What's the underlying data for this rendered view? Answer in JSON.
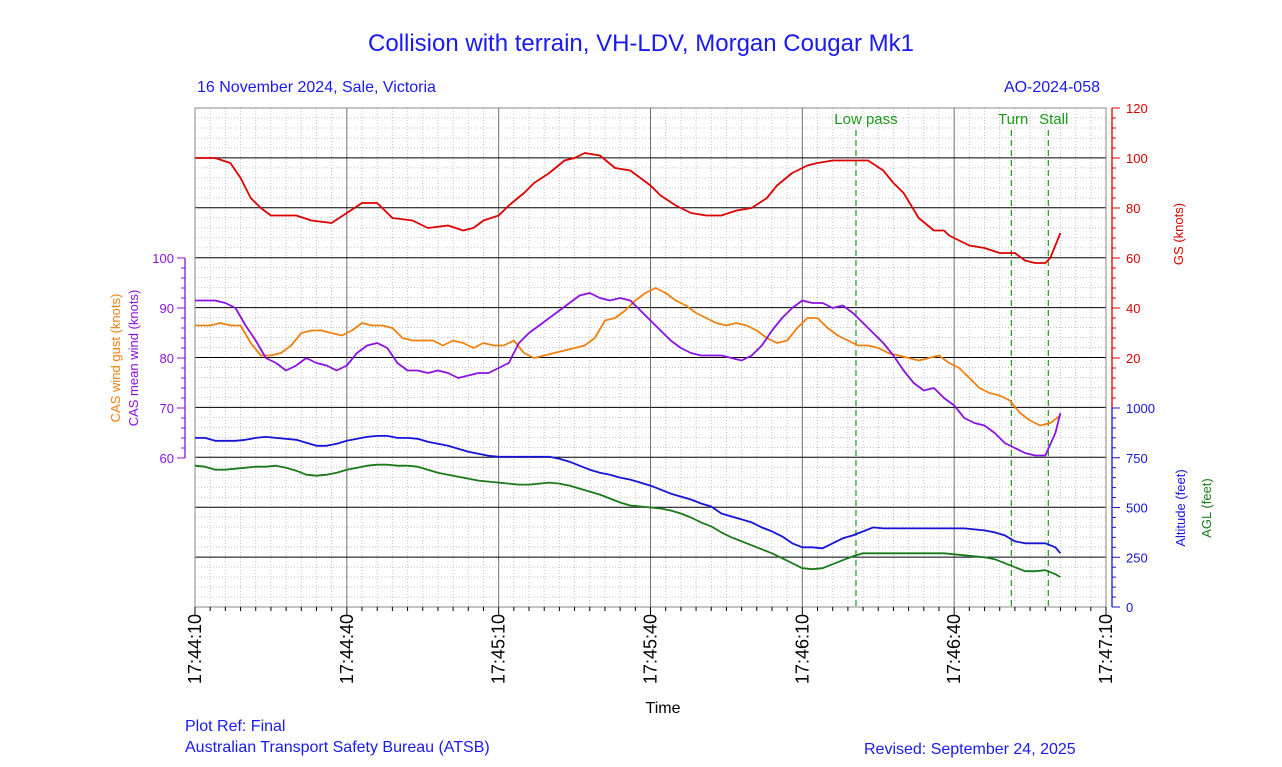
{
  "title": "Collision with terrain, VH-LDV, Morgan Cougar Mk1",
  "subtitle_left": "16 November 2024, Sale, Victoria",
  "subtitle_right": "AO-2024-058",
  "footer": {
    "plot_ref": "Plot Ref: Final",
    "organisation": "Australian Transport Safety Bureau (ATSB)",
    "revised": "Revised: September 24, 2025"
  },
  "colors": {
    "gs": "#dd0000",
    "cas_gust": "#f08010",
    "cas_mean": "#8a12e0",
    "altitude": "#1414d8",
    "agl": "#1a7a1a",
    "events": "#1a9a1a",
    "text_blue": "#1a1aee"
  },
  "chart_data": {
    "type": "line",
    "xlabel": "Time",
    "x_ticks": [
      "17:44:10",
      "17:44:40",
      "17:45:10",
      "17:45:40",
      "17:46:10",
      "17:46:40",
      "17:47:10"
    ],
    "x_range_seconds": [
      0,
      180
    ],
    "grid": true,
    "axes": {
      "gs": {
        "label": "GS (knots)",
        "range": [
          0,
          120
        ],
        "ticks": [
          20,
          40,
          60,
          80,
          100,
          120
        ]
      },
      "cas": {
        "labels": [
          "CAS wind gust (knots)",
          "CAS mean wind (knots)"
        ],
        "range": [
          60,
          100
        ],
        "ticks": [
          60,
          70,
          80,
          90,
          100
        ]
      },
      "alt": {
        "labels": [
          "Altitude (feet)",
          "AGL (feet)"
        ],
        "range": [
          0,
          1000
        ],
        "ticks": [
          0,
          250,
          500,
          750,
          1000
        ]
      }
    },
    "events": [
      {
        "label": "Low pass",
        "t": 130.6
      },
      {
        "label": "Turn",
        "t": 161.3
      },
      {
        "label": "Stall",
        "t": 168.6
      }
    ],
    "series": [
      {
        "name": "GS (knots)",
        "axis": "gs",
        "color_key": "gs",
        "t": [
          0,
          4,
          7,
          9,
          11,
          13,
          15,
          17,
          20,
          23,
          27,
          30,
          33,
          36,
          39,
          43,
          46,
          50,
          53,
          55,
          57,
          60,
          62,
          65,
          67,
          70,
          73,
          75,
          77,
          80,
          83,
          86,
          88,
          90,
          92,
          95,
          98,
          101,
          104,
          107,
          110,
          113,
          115,
          118,
          121,
          123,
          126,
          128,
          130,
          133,
          136,
          138,
          140,
          143,
          146,
          148,
          149,
          151,
          153,
          156,
          159,
          162,
          164,
          166,
          168,
          169,
          171
        ],
        "values": [
          100,
          100,
          98,
          92,
          84,
          80,
          77,
          77,
          77,
          75,
          74,
          78,
          82,
          82,
          76,
          75,
          72,
          73,
          71,
          72,
          75,
          77,
          81,
          86,
          90,
          94,
          99,
          100,
          102,
          101,
          96,
          95,
          92,
          89,
          85,
          81,
          78,
          77,
          77,
          79,
          80,
          84,
          89,
          94,
          97,
          98,
          99,
          99,
          99,
          99,
          95,
          90,
          86,
          76,
          71,
          71,
          69,
          67,
          65,
          64,
          62,
          62,
          59,
          58,
          58,
          60,
          70
        ]
      },
      {
        "name": "CAS wind gust (knots)",
        "axis": "cas",
        "color_key": "cas_gust",
        "t": [
          0,
          3,
          5,
          7,
          9,
          11,
          13,
          15,
          17,
          19,
          21,
          23,
          25,
          27,
          29,
          31,
          33,
          35,
          37,
          39,
          41,
          43,
          45,
          47,
          49,
          51,
          53,
          55,
          57,
          59,
          61,
          63,
          65,
          67,
          69,
          71,
          73,
          75,
          77,
          79,
          81,
          83,
          85,
          87,
          89,
          91,
          93,
          95,
          97,
          99,
          101,
          103,
          105,
          107,
          109,
          111,
          113,
          115,
          117,
          119,
          121,
          123,
          125,
          127,
          129,
          131,
          133,
          135,
          137,
          139,
          141,
          143,
          145,
          147,
          149,
          151,
          153,
          155,
          157,
          159,
          161,
          163,
          165,
          167,
          169,
          171
        ],
        "values": [
          86.5,
          86.5,
          87,
          86.5,
          86.5,
          83,
          80.5,
          80.5,
          81,
          82.5,
          85,
          85.5,
          85.5,
          85,
          84.5,
          85.5,
          87,
          86.5,
          86.5,
          86,
          84,
          83.5,
          83.5,
          83.5,
          82.5,
          83.5,
          83,
          82,
          83,
          82.5,
          82.5,
          83.5,
          81,
          80,
          80.5,
          81,
          81.5,
          82,
          82.5,
          84,
          87.5,
          88,
          89.5,
          91.5,
          93,
          94,
          93,
          91.5,
          90.5,
          89,
          88,
          87,
          86.5,
          87,
          86.5,
          85.5,
          84,
          83,
          83.5,
          86,
          88,
          88,
          86,
          84.5,
          83.5,
          82.5,
          82.5,
          82,
          81,
          80.5,
          80,
          79.5,
          80,
          80.5,
          79,
          78,
          76,
          74,
          73,
          72.5,
          71.5,
          69,
          67.5,
          66.5,
          67,
          68.5
        ]
      },
      {
        "name": "CAS mean wind (knots)",
        "axis": "cas",
        "color_key": "cas_mean",
        "t": [
          0,
          2,
          4,
          6,
          8,
          10,
          12,
          14,
          16,
          18,
          20,
          22,
          24,
          26,
          28,
          30,
          32,
          34,
          36,
          38,
          40,
          42,
          44,
          46,
          48,
          50,
          52,
          54,
          56,
          58,
          60,
          62,
          64,
          66,
          68,
          70,
          72,
          74,
          76,
          78,
          80,
          82,
          84,
          86,
          88,
          90,
          92,
          94,
          96,
          98,
          100,
          102,
          104,
          106,
          108,
          110,
          112,
          114,
          116,
          118,
          120,
          122,
          124,
          126,
          128,
          130,
          132,
          134,
          136,
          138,
          140,
          142,
          144,
          146,
          148,
          150,
          152,
          154,
          156,
          158,
          160,
          162,
          164,
          166,
          168,
          170,
          171
        ],
        "values": [
          91.5,
          91.5,
          91.5,
          91,
          90,
          86.5,
          83.5,
          80,
          79,
          77.5,
          78.5,
          80,
          79,
          78.5,
          77.5,
          78.5,
          81,
          82.5,
          83,
          82,
          79,
          77.5,
          77.5,
          77,
          77.5,
          77,
          76,
          76.5,
          77,
          77,
          78,
          79,
          83,
          85,
          86.5,
          88,
          89.5,
          91,
          92.5,
          93,
          92,
          91.5,
          92,
          91.5,
          89.5,
          87.5,
          85.5,
          83.5,
          82,
          81,
          80.5,
          80.5,
          80.5,
          80,
          79.5,
          80.5,
          82.5,
          85.5,
          88,
          90,
          91.5,
          91,
          91,
          90,
          90.5,
          89,
          87,
          85,
          83,
          80.5,
          77.5,
          75,
          73.5,
          74,
          72,
          70.5,
          68,
          67,
          66.5,
          65,
          63,
          62,
          61,
          60.5,
          60.5,
          65,
          69
        ]
      },
      {
        "name": "Altitude (feet)",
        "axis": "alt",
        "color_key": "altitude",
        "t": [
          0,
          2,
          4,
          6,
          8,
          10,
          12,
          14,
          16,
          18,
          20,
          22,
          24,
          26,
          28,
          30,
          32,
          34,
          36,
          38,
          40,
          42,
          44,
          46,
          48,
          50,
          52,
          54,
          56,
          58,
          60,
          62,
          64,
          66,
          68,
          70,
          72,
          74,
          76,
          78,
          80,
          82,
          84,
          86,
          88,
          90,
          92,
          94,
          96,
          98,
          100,
          102,
          104,
          106,
          108,
          110,
          112,
          114,
          116,
          118,
          120,
          122,
          124,
          126,
          128,
          130,
          132,
          134,
          136,
          138,
          140,
          142,
          144,
          146,
          148,
          150,
          152,
          154,
          156,
          158,
          160,
          162,
          164,
          166,
          168,
          170,
          171
        ],
        "values": [
          850,
          850,
          835,
          835,
          835,
          840,
          850,
          855,
          850,
          845,
          840,
          825,
          810,
          810,
          820,
          835,
          845,
          855,
          860,
          860,
          850,
          850,
          845,
          830,
          820,
          810,
          795,
          780,
          770,
          760,
          755,
          755,
          755,
          755,
          755,
          755,
          745,
          730,
          710,
          690,
          675,
          665,
          650,
          640,
          625,
          610,
          590,
          570,
          555,
          540,
          520,
          505,
          470,
          455,
          440,
          425,
          400,
          380,
          355,
          320,
          300,
          300,
          295,
          320,
          345,
          360,
          380,
          400,
          395,
          395,
          395,
          395,
          395,
          395,
          395,
          395,
          395,
          390,
          385,
          375,
          360,
          330,
          320,
          320,
          320,
          300,
          270
        ]
      },
      {
        "name": "AGL (feet)",
        "axis": "alt",
        "color_key": "agl",
        "t": [
          0,
          2,
          4,
          6,
          8,
          10,
          12,
          14,
          16,
          18,
          20,
          22,
          24,
          26,
          28,
          30,
          32,
          34,
          36,
          38,
          40,
          42,
          44,
          46,
          48,
          50,
          52,
          54,
          56,
          58,
          60,
          62,
          64,
          66,
          68,
          70,
          72,
          74,
          76,
          78,
          80,
          82,
          84,
          86,
          88,
          90,
          92,
          94,
          96,
          98,
          100,
          102,
          104,
          106,
          108,
          110,
          112,
          114,
          116,
          118,
          120,
          122,
          124,
          126,
          128,
          130,
          132,
          134,
          136,
          138,
          140,
          142,
          144,
          146,
          148,
          150,
          152,
          154,
          156,
          158,
          160,
          162,
          164,
          166,
          168,
          170,
          171
        ],
        "values": [
          710,
          705,
          690,
          690,
          695,
          700,
          705,
          705,
          710,
          700,
          685,
          665,
          660,
          665,
          675,
          690,
          700,
          710,
          715,
          715,
          710,
          710,
          705,
          690,
          675,
          665,
          655,
          645,
          635,
          630,
          625,
          620,
          615,
          615,
          620,
          625,
          620,
          610,
          595,
          580,
          565,
          545,
          525,
          510,
          505,
          500,
          495,
          485,
          470,
          450,
          425,
          405,
          375,
          350,
          330,
          310,
          290,
          270,
          245,
          220,
          195,
          190,
          195,
          215,
          235,
          255,
          270,
          270,
          270,
          270,
          270,
          270,
          270,
          270,
          270,
          265,
          260,
          255,
          250,
          240,
          220,
          200,
          180,
          180,
          185,
          165,
          150
        ]
      }
    ]
  }
}
